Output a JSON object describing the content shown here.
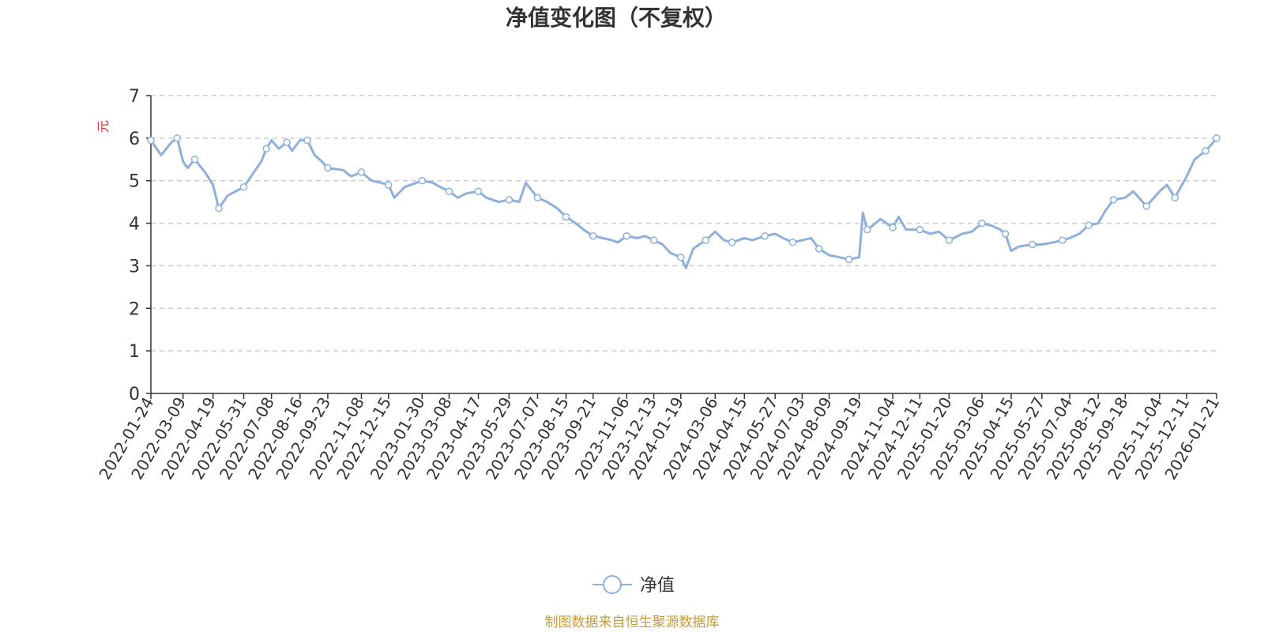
{
  "chart_data": {
    "type": "line",
    "title": "净值变化图（不复权）",
    "ylabel": "元",
    "ylim": [
      0,
      7
    ],
    "yticks": [
      0,
      1,
      2,
      3,
      4,
      5,
      6,
      7
    ],
    "grid": true,
    "legend_position": "bottom-center",
    "x_tick_labels": [
      "2022-01-24",
      "2022-03-09",
      "2022-04-19",
      "2022-05-31",
      "2022-07-08",
      "2022-08-16",
      "2022-09-23",
      "2022-11-08",
      "2022-12-15",
      "2023-01-30",
      "2023-03-08",
      "2023-04-17",
      "2023-05-29",
      "2023-07-07",
      "2023-08-15",
      "2023-09-21",
      "2023-11-06",
      "2023-12-13",
      "2024-01-19",
      "2024-03-06",
      "2024-04-15",
      "2024-05-27",
      "2024-07-03",
      "2024-08-09",
      "2024-09-19",
      "2024-11-04",
      "2024-12-11",
      "2025-01-20",
      "2025-03-06",
      "2025-04-15",
      "2025-05-27",
      "2025-07-04",
      "2025-08-12",
      "2025-09-18",
      "2025-11-04",
      "2025-12-11",
      "2026-01-21"
    ],
    "series": [
      {
        "name": "净值",
        "color": "#8eb0dc",
        "marker": "circle",
        "x": [
          "2022-01-24",
          "2022-02-07",
          "2022-02-21",
          "2022-03-01",
          "2022-03-09",
          "2022-03-15",
          "2022-03-25",
          "2022-04-08",
          "2022-04-19",
          "2022-04-27",
          "2022-05-09",
          "2022-05-20",
          "2022-05-31",
          "2022-06-10",
          "2022-06-24",
          "2022-07-01",
          "2022-07-08",
          "2022-07-18",
          "2022-07-29",
          "2022-08-05",
          "2022-08-16",
          "2022-08-26",
          "2022-09-05",
          "2022-09-15",
          "2022-09-23",
          "2022-10-14",
          "2022-10-25",
          "2022-11-08",
          "2022-11-22",
          "2022-12-05",
          "2022-12-15",
          "2022-12-23",
          "2023-01-06",
          "2023-01-30",
          "2023-02-14",
          "2023-02-24",
          "2023-03-08",
          "2023-03-20",
          "2023-03-31",
          "2023-04-17",
          "2023-04-28",
          "2023-05-15",
          "2023-05-29",
          "2023-06-12",
          "2023-06-21",
          "2023-07-07",
          "2023-07-20",
          "2023-08-03",
          "2023-08-15",
          "2023-08-28",
          "2023-09-08",
          "2023-09-21",
          "2023-10-17",
          "2023-10-25",
          "2023-11-06",
          "2023-11-20",
          "2023-12-01",
          "2023-12-13",
          "2023-12-25",
          "2024-01-05",
          "2024-01-19",
          "2024-01-26",
          "2024-02-05",
          "2024-02-22",
          "2024-03-06",
          "2024-03-18",
          "2024-03-29",
          "2024-04-15",
          "2024-04-26",
          "2024-05-13",
          "2024-05-27",
          "2024-06-07",
          "2024-06-20",
          "2024-07-03",
          "2024-07-15",
          "2024-07-26",
          "2024-08-09",
          "2024-08-23",
          "2024-09-05",
          "2024-09-19",
          "2024-09-24",
          "2024-09-30",
          "2024-10-08",
          "2024-10-18",
          "2024-11-04",
          "2024-11-12",
          "2024-11-22",
          "2024-12-11",
          "2024-12-25",
          "2025-01-06",
          "2025-01-20",
          "2025-02-07",
          "2025-02-20",
          "2025-03-06",
          "2025-03-18",
          "2025-03-31",
          "2025-04-07",
          "2025-04-15",
          "2025-04-25",
          "2025-05-14",
          "2025-05-27",
          "2025-06-12",
          "2025-06-24",
          "2025-07-04",
          "2025-07-17",
          "2025-07-30",
          "2025-08-12",
          "2025-08-22",
          "2025-09-02",
          "2025-09-18",
          "2025-09-29",
          "2025-10-17",
          "2025-11-04",
          "2025-11-14",
          "2025-11-25",
          "2025-12-11",
          "2025-12-22",
          "2026-01-06",
          "2026-01-14",
          "2026-01-21"
        ],
        "values": [
          5.95,
          5.6,
          5.9,
          6.0,
          5.45,
          5.3,
          5.5,
          5.2,
          4.9,
          4.35,
          4.65,
          4.75,
          4.85,
          5.1,
          5.45,
          5.75,
          5.95,
          5.75,
          5.9,
          5.7,
          5.95,
          5.95,
          5.6,
          5.45,
          5.3,
          5.25,
          5.1,
          5.2,
          5.0,
          4.95,
          4.9,
          4.6,
          4.85,
          5.0,
          4.95,
          4.85,
          4.75,
          4.6,
          4.7,
          4.75,
          4.6,
          4.5,
          4.55,
          4.5,
          4.95,
          4.6,
          4.5,
          4.35,
          4.15,
          4.0,
          3.85,
          3.7,
          3.6,
          3.55,
          3.7,
          3.65,
          3.7,
          3.6,
          3.5,
          3.3,
          3.2,
          2.95,
          3.4,
          3.6,
          3.8,
          3.6,
          3.55,
          3.65,
          3.6,
          3.7,
          3.75,
          3.65,
          3.55,
          3.6,
          3.65,
          3.4,
          3.25,
          3.2,
          3.15,
          3.2,
          4.25,
          3.85,
          3.95,
          4.1,
          3.9,
          4.15,
          3.85,
          3.85,
          3.75,
          3.8,
          3.6,
          3.75,
          3.8,
          4.0,
          3.95,
          3.85,
          3.75,
          3.35,
          3.45,
          3.5,
          3.5,
          3.55,
          3.6,
          3.65,
          3.75,
          3.95,
          4.0,
          4.3,
          4.55,
          4.6,
          4.75,
          4.4,
          4.75,
          4.9,
          4.6,
          5.1,
          5.5,
          5.7,
          5.85,
          6.0
        ]
      }
    ]
  },
  "legend": {
    "label": "净值"
  },
  "source": "制图数据来自恒生聚源数据库",
  "colors": {
    "axis": "#333333",
    "grid": "#cccccc",
    "line": "#8eb0dc",
    "unit": "#e03030",
    "source": "#c49a3a"
  }
}
